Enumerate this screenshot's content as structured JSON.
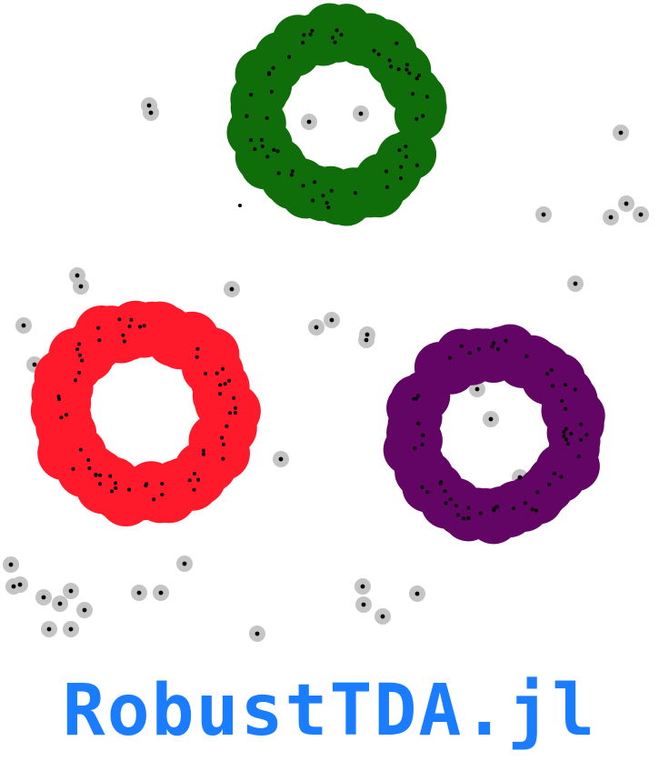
{
  "logo": {
    "text": "RobustTDA.jl",
    "color": "#1a7cff"
  },
  "palette": {
    "background": "#ffffff",
    "green_ring": "#0f6d0a",
    "red_ring": "#ff1a2b",
    "purple_ring": "#620565",
    "outlier_halo": "#c4c4c4",
    "point": "#000000"
  }
}
